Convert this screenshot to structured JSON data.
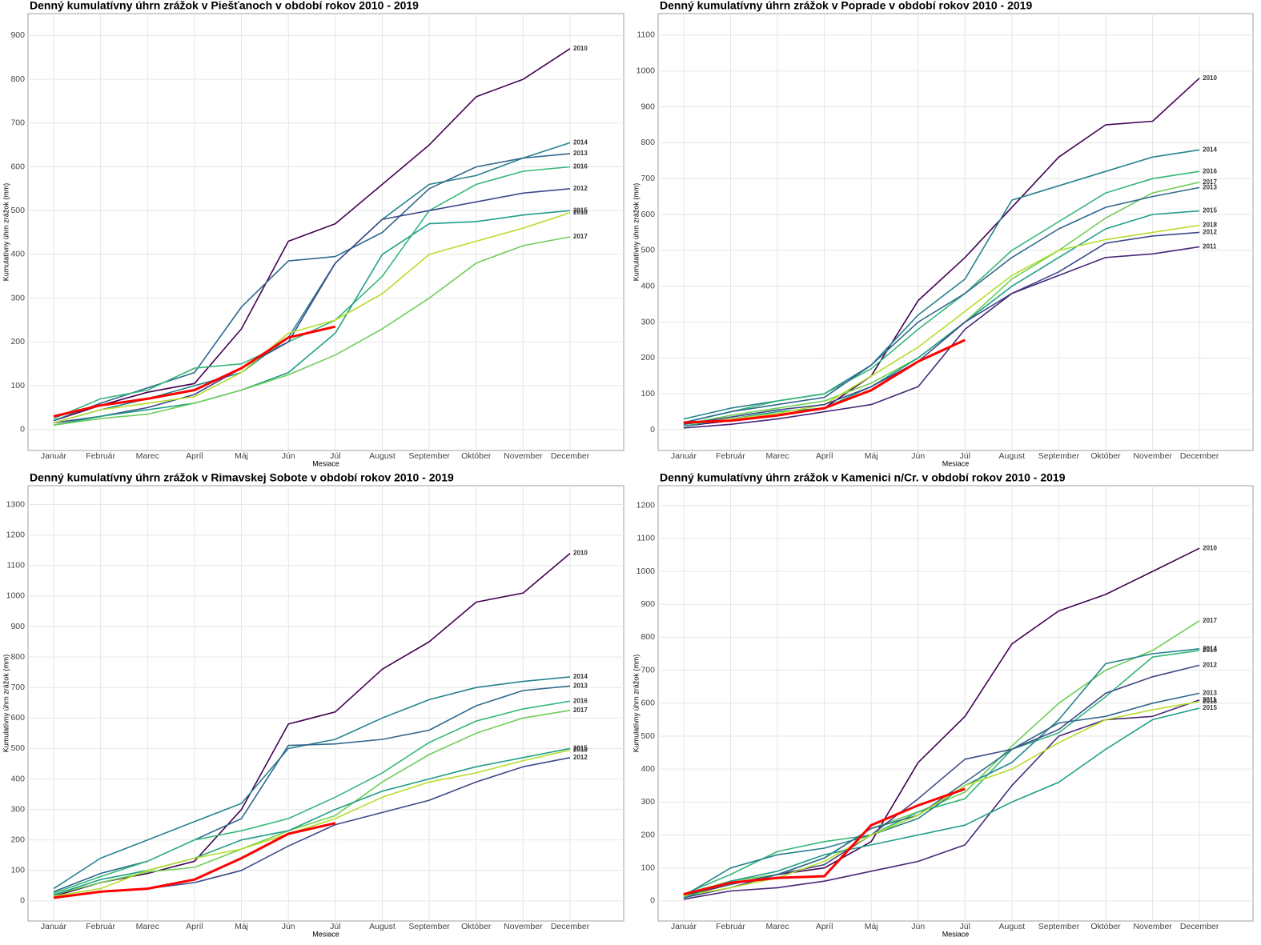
{
  "chart_data": [
    {
      "type": "line",
      "title": "Denný kumulatívny úhrn zrážok v Piešťanoch v období rokov 2010 - 2019",
      "xlabel": "Mesiace",
      "ylabel": "Kumulatívny úhrn zrážok (mm)",
      "categories": [
        "Január",
        "Február",
        "Marec",
        "Apríl",
        "Máj",
        "Jún",
        "Júl",
        "August",
        "September",
        "Október",
        "November",
        "December"
      ],
      "ylim": [
        -48,
        950
      ],
      "yticks": [
        0,
        100,
        200,
        300,
        400,
        500,
        600,
        700,
        800,
        900
      ],
      "grid": true,
      "series": [
        {
          "name": "2010",
          "color": "#440154",
          "values": [
            20,
            55,
            85,
            105,
            230,
            430,
            470,
            560,
            650,
            760,
            800,
            870
          ]
        },
        {
          "name": "2014",
          "color": "#26828e",
          "values": [
            15,
            45,
            70,
            100,
            130,
            210,
            380,
            480,
            560,
            580,
            620,
            655
          ]
        },
        {
          "name": "2013",
          "color": "#31688e",
          "values": [
            20,
            60,
            95,
            130,
            280,
            385,
            395,
            450,
            550,
            600,
            620,
            630
          ]
        },
        {
          "name": "2016",
          "color": "#35b779",
          "values": [
            25,
            70,
            90,
            140,
            150,
            200,
            250,
            350,
            500,
            560,
            590,
            600
          ]
        },
        {
          "name": "2012",
          "color": "#3e4989",
          "values": [
            15,
            30,
            50,
            80,
            140,
            200,
            380,
            480,
            500,
            520,
            540,
            550
          ]
        },
        {
          "name": "2015",
          "color": "#1f9e89",
          "values": [
            10,
            30,
            45,
            60,
            90,
            130,
            220,
            400,
            470,
            475,
            490,
            500
          ]
        },
        {
          "name": "2018",
          "color": "#b5de2b",
          "values": [
            15,
            45,
            60,
            75,
            130,
            220,
            250,
            310,
            400,
            430,
            460,
            495
          ]
        },
        {
          "name": "2017",
          "color": "#6ece58",
          "values": [
            10,
            25,
            35,
            60,
            90,
            125,
            170,
            230,
            300,
            380,
            420,
            440
          ]
        },
        {
          "color": "#ff0000",
          "linewidth": 3,
          "values": [
            30,
            55,
            70,
            90,
            140,
            210,
            235,
            null,
            null,
            null,
            null,
            null
          ]
        }
      ]
    },
    {
      "type": "line",
      "title": "Denný kumulatívny úhrn zrážok v Poprade v období rokov 2010 - 2019",
      "xlabel": "Mesiace",
      "ylabel": "Kumulatívny úhrn zrážok (mm)",
      "categories": [
        "Január",
        "Február",
        "Marec",
        "Apríl",
        "Máj",
        "Jún",
        "Júl",
        "August",
        "September",
        "Október",
        "November",
        "December"
      ],
      "ylim": [
        -58,
        1160
      ],
      "yticks": [
        0,
        100,
        200,
        300,
        400,
        500,
        600,
        700,
        800,
        900,
        1000,
        1100
      ],
      "grid": true,
      "series": [
        {
          "name": "2010",
          "color": "#440154",
          "values": [
            10,
            25,
            40,
            60,
            150,
            360,
            480,
            620,
            760,
            850,
            860,
            980
          ]
        },
        {
          "name": "2014",
          "color": "#26828e",
          "values": [
            30,
            60,
            80,
            100,
            180,
            320,
            420,
            640,
            680,
            720,
            760,
            780
          ]
        },
        {
          "name": "2016",
          "color": "#35b779",
          "values": [
            20,
            50,
            80,
            100,
            170,
            280,
            380,
            500,
            580,
            660,
            700,
            720
          ]
        },
        {
          "name": "2017",
          "color": "#6ece58",
          "values": [
            15,
            40,
            60,
            80,
            130,
            200,
            300,
            420,
            500,
            590,
            660,
            690
          ]
        },
        {
          "name": "2013",
          "color": "#31688e",
          "values": [
            20,
            50,
            70,
            90,
            180,
            300,
            380,
            480,
            560,
            620,
            650,
            675
          ]
        },
        {
          "name": "2015",
          "color": "#1f9e89",
          "values": [
            10,
            30,
            50,
            60,
            120,
            200,
            300,
            400,
            480,
            560,
            600,
            610
          ]
        },
        {
          "name": "2018",
          "color": "#b5de2b",
          "values": [
            15,
            30,
            45,
            70,
            150,
            230,
            330,
            430,
            500,
            530,
            550,
            570
          ]
        },
        {
          "name": "2012",
          "color": "#3e4989",
          "values": [
            15,
            35,
            55,
            70,
            120,
            190,
            300,
            380,
            440,
            520,
            540,
            550
          ]
        },
        {
          "name": "2011",
          "color": "#482878",
          "values": [
            5,
            15,
            30,
            50,
            70,
            120,
            280,
            380,
            430,
            480,
            490,
            510
          ]
        },
        {
          "color": "#ff0000",
          "linewidth": 3,
          "values": [
            20,
            25,
            40,
            60,
            110,
            190,
            250,
            null,
            null,
            null,
            null,
            null
          ]
        }
      ]
    },
    {
      "type": "line",
      "title": "Denný kumulatívny úhrn zrážok v Rimavskej Sobote v období rokov 2010 - 2019",
      "xlabel": "Mesiace",
      "ylabel": "Kumulatívny úhrn zrážok (mm)",
      "categories": [
        "Január",
        "Február",
        "Marec",
        "Apríl",
        "Máj",
        "Jún",
        "Júl",
        "August",
        "September",
        "Október",
        "November",
        "December"
      ],
      "ylim": [
        -66,
        1362
      ],
      "yticks": [
        0,
        100,
        200,
        300,
        400,
        500,
        600,
        700,
        800,
        900,
        1000,
        1100,
        1200,
        1300
      ],
      "grid": true,
      "series": [
        {
          "name": "2010",
          "color": "#440154",
          "values": [
            15,
            60,
            90,
            130,
            300,
            580,
            620,
            760,
            850,
            980,
            1010,
            1140
          ]
        },
        {
          "name": "2014",
          "color": "#26828e",
          "values": [
            40,
            140,
            200,
            260,
            320,
            500,
            530,
            600,
            660,
            700,
            720,
            735
          ]
        },
        {
          "name": "2013",
          "color": "#31688e",
          "values": [
            30,
            90,
            130,
            200,
            270,
            510,
            515,
            530,
            560,
            640,
            690,
            705
          ]
        },
        {
          "name": "2016",
          "color": "#35b779",
          "values": [
            25,
            80,
            130,
            200,
            230,
            270,
            340,
            420,
            520,
            590,
            630,
            655
          ]
        },
        {
          "name": "2017",
          "color": "#6ece58",
          "values": [
            20,
            60,
            95,
            110,
            170,
            230,
            280,
            390,
            480,
            550,
            600,
            625
          ]
        },
        {
          "name": "2015",
          "color": "#1f9e89",
          "values": [
            20,
            70,
            100,
            140,
            200,
            230,
            300,
            360,
            400,
            440,
            470,
            500
          ]
        },
        {
          "name": "2018",
          "color": "#b5de2b",
          "values": [
            15,
            40,
            100,
            140,
            170,
            220,
            270,
            340,
            390,
            420,
            460,
            495
          ]
        },
        {
          "name": "2012",
          "color": "#3e4989",
          "values": [
            10,
            30,
            40,
            60,
            100,
            180,
            250,
            290,
            330,
            390,
            440,
            470
          ]
        },
        {
          "color": "#ff0000",
          "linewidth": 3,
          "values": [
            10,
            30,
            40,
            70,
            140,
            220,
            255,
            null,
            null,
            null,
            null,
            null
          ]
        }
      ]
    },
    {
      "type": "line",
      "title": "Denný kumulatívny úhrn zrážok v Kamenici n/Cr. v období rokov 2010 - 2019",
      "xlabel": "Mesiace",
      "ylabel": "Kumulatívny úhrn zrážok (mm)",
      "categories": [
        "Január",
        "Február",
        "Marec",
        "Apríl",
        "Máj",
        "Jún",
        "Júl",
        "August",
        "September",
        "Október",
        "November",
        "December"
      ],
      "ylim": [
        -61,
        1260
      ],
      "yticks": [
        0,
        100,
        200,
        300,
        400,
        500,
        600,
        700,
        800,
        900,
        1000,
        1100,
        1200
      ],
      "grid": true,
      "series": [
        {
          "name": "2010",
          "color": "#440154",
          "values": [
            15,
            50,
            80,
            100,
            180,
            420,
            560,
            780,
            880,
            930,
            1000,
            1070
          ]
        },
        {
          "name": "2017",
          "color": "#6ece58",
          "values": [
            20,
            60,
            80,
            130,
            220,
            270,
            330,
            470,
            600,
            700,
            760,
            850
          ]
        },
        {
          "name": "2016",
          "color": "#35b779",
          "values": [
            20,
            80,
            150,
            180,
            200,
            270,
            310,
            460,
            510,
            620,
            740,
            760
          ]
        },
        {
          "name": "2014",
          "color": "#26828e",
          "values": [
            15,
            100,
            140,
            160,
            200,
            250,
            350,
            420,
            550,
            720,
            750,
            765
          ]
        },
        {
          "name": "2012",
          "color": "#3e4989",
          "values": [
            10,
            40,
            80,
            110,
            200,
            310,
            430,
            460,
            520,
            630,
            680,
            715
          ]
        },
        {
          "name": "2013",
          "color": "#31688e",
          "values": [
            20,
            50,
            80,
            130,
            220,
            260,
            360,
            460,
            540,
            560,
            600,
            630
          ]
        },
        {
          "name": "2011",
          "color": "#482878",
          "values": [
            5,
            30,
            40,
            60,
            90,
            120,
            170,
            350,
            500,
            550,
            560,
            610
          ]
        },
        {
          "name": "2018",
          "color": "#b5de2b",
          "values": [
            15,
            40,
            70,
            120,
            200,
            260,
            350,
            400,
            480,
            550,
            580,
            605
          ]
        },
        {
          "name": "2015",
          "color": "#1f9e89",
          "values": [
            10,
            60,
            90,
            140,
            170,
            200,
            230,
            300,
            360,
            460,
            550,
            585
          ]
        },
        {
          "color": "#ff0000",
          "linewidth": 3,
          "values": [
            20,
            55,
            70,
            75,
            230,
            290,
            340,
            null,
            null,
            null,
            null,
            null
          ]
        }
      ]
    }
  ]
}
